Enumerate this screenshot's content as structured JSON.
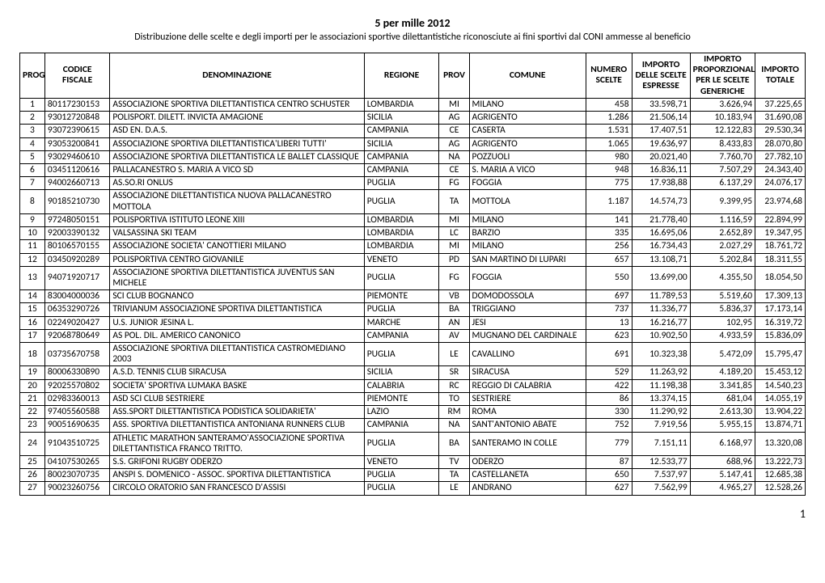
{
  "header": {
    "title": "5 per mille 2012",
    "subtitle": "Distribuzione delle scelte e degli importi per le associazioni sportive dilettantistiche riconosciute ai fini sportivi dal CONI ammesse al beneficio"
  },
  "columns": {
    "prog": "PROG",
    "codice_fiscale": "CODICE FISCALE",
    "denominazione": "DENOMINAZIONE",
    "regione": "REGIONE",
    "prov": "PROV",
    "comune": "COMUNE",
    "numero_scelte": "NUMERO SCELTE",
    "importo_scelte": "IMPORTO DELLE SCELTE ESPRESSE",
    "importo_proporzionale": "IMPORTO PROPORZIONALE PER LE SCELTE GENERICHE",
    "importo_totale": "IMPORTO TOTALE"
  },
  "rows": [
    {
      "prog": "1",
      "cf": "80117230153",
      "den": "ASSOCIAZIONE SPORTIVA DILETTANTISTICA CENTRO SCHUSTER",
      "reg": "LOMBARDIA",
      "prov": "MI",
      "com": "MILANO",
      "num": "458",
      "imp1": "33.598,71",
      "imp2": "3.626,94",
      "imp3": "37.225,65"
    },
    {
      "prog": "2",
      "cf": "93012720848",
      "den": "POLISPORT. DILETT. INVICTA AMAGIONE",
      "reg": "SICILIA",
      "prov": "AG",
      "com": "AGRIGENTO",
      "num": "1.286",
      "imp1": "21.506,14",
      "imp2": "10.183,94",
      "imp3": "31.690,08"
    },
    {
      "prog": "3",
      "cf": "93072390615",
      "den": "ASD EN. D.A.S.",
      "reg": "CAMPANIA",
      "prov": "CE",
      "com": "CASERTA",
      "num": "1.531",
      "imp1": "17.407,51",
      "imp2": "12.122,83",
      "imp3": "29.530,34"
    },
    {
      "prog": "4",
      "cf": "93053200841",
      "den": "ASSOCIAZIONE SPORTIVA DILETTANTISTICA'LIBERI TUTTI'",
      "reg": "SICILIA",
      "prov": "AG",
      "com": "AGRIGENTO",
      "num": "1.065",
      "imp1": "19.636,97",
      "imp2": "8.433,83",
      "imp3": "28.070,80"
    },
    {
      "prog": "5",
      "cf": "93029460610",
      "den": "ASSOCIAZIONE SPORTIVA DILETTANTISTICA LE BALLET CLASSIQUE",
      "reg": "CAMPANIA",
      "prov": "NA",
      "com": "POZZUOLI",
      "num": "980",
      "imp1": "20.021,40",
      "imp2": "7.760,70",
      "imp3": "27.782,10"
    },
    {
      "prog": "6",
      "cf": "03451120616",
      "den": "PALLACANESTRO S. MARIA A VICO SD",
      "reg": "CAMPANIA",
      "prov": "CE",
      "com": "S. MARIA A VICO",
      "num": "948",
      "imp1": "16.836,11",
      "imp2": "7.507,29",
      "imp3": "24.343,40"
    },
    {
      "prog": "7",
      "cf": "94002660713",
      "den": "AS.SO.RI ONLUS",
      "reg": "PUGLIA",
      "prov": "FG",
      "com": "FOGGIA",
      "num": "775",
      "imp1": "17.938,88",
      "imp2": "6.137,29",
      "imp3": "24.076,17"
    },
    {
      "prog": "8",
      "cf": "90185210730",
      "den": "ASSOCIAZIONE DILETTANTISTICA NUOVA PALLACANESTRO MOTTOLA",
      "reg": "PUGLIA",
      "prov": "TA",
      "com": "MOTTOLA",
      "num": "1.187",
      "imp1": "14.574,73",
      "imp2": "9.399,95",
      "imp3": "23.974,68"
    },
    {
      "prog": "9",
      "cf": "97248050151",
      "den": "POLISPORTIVA ISTITUTO LEONE XIII",
      "reg": "LOMBARDIA",
      "prov": "MI",
      "com": "MILANO",
      "num": "141",
      "imp1": "21.778,40",
      "imp2": "1.116,59",
      "imp3": "22.894,99"
    },
    {
      "prog": "10",
      "cf": "92003390132",
      "den": "VALSASSINA SKI TEAM",
      "reg": "LOMBARDIA",
      "prov": "LC",
      "com": "BARZIO",
      "num": "335",
      "imp1": "16.695,06",
      "imp2": "2.652,89",
      "imp3": "19.347,95"
    },
    {
      "prog": "11",
      "cf": "80106570155",
      "den": "ASSOCIAZIONE SOCIETA' CANOTTIERI MILANO",
      "reg": "LOMBARDIA",
      "prov": "MI",
      "com": "MILANO",
      "num": "256",
      "imp1": "16.734,43",
      "imp2": "2.027,29",
      "imp3": "18.761,72"
    },
    {
      "prog": "12",
      "cf": "03450920289",
      "den": "POLISPORTIVA CENTRO GIOVANILE",
      "reg": "VENETO",
      "prov": "PD",
      "com": "SAN MARTINO DI LUPARI",
      "num": "657",
      "imp1": "13.108,71",
      "imp2": "5.202,84",
      "imp3": "18.311,55"
    },
    {
      "prog": "13",
      "cf": "94071920717",
      "den": "ASSOCIAZIONE SPORTIVA DILETTANTISTICA JUVENTUS SAN MICHELE",
      "reg": "PUGLIA",
      "prov": "FG",
      "com": "FOGGIA",
      "num": "550",
      "imp1": "13.699,00",
      "imp2": "4.355,50",
      "imp3": "18.054,50"
    },
    {
      "prog": "14",
      "cf": "83004000036",
      "den": "SCI CLUB BOGNANCO",
      "reg": "PIEMONTE",
      "prov": "VB",
      "com": "DOMODOSSOLA",
      "num": "697",
      "imp1": "11.789,53",
      "imp2": "5.519,60",
      "imp3": "17.309,13"
    },
    {
      "prog": "15",
      "cf": "06353290726",
      "den": "TRIVIANUM ASSOCIAZIONE SPORTIVA DILETTANTISTICA",
      "reg": "PUGLIA",
      "prov": "BA",
      "com": "TRIGGIANO",
      "num": "737",
      "imp1": "11.336,77",
      "imp2": "5.836,37",
      "imp3": "17.173,14"
    },
    {
      "prog": "16",
      "cf": "02249020427",
      "den": "U.S. JUNIOR JESINA L.",
      "reg": "MARCHE",
      "prov": "AN",
      "com": "JESI",
      "num": "13",
      "imp1": "16.216,77",
      "imp2": "102,95",
      "imp3": "16.319,72"
    },
    {
      "prog": "17",
      "cf": "92068780649",
      "den": "AS POL. DIL. AMERICO CANONICO",
      "reg": "CAMPANIA",
      "prov": "AV",
      "com": "MUGNANO DEL CARDINALE",
      "num": "623",
      "imp1": "10.902,50",
      "imp2": "4.933,59",
      "imp3": "15.836,09"
    },
    {
      "prog": "18",
      "cf": "03735670758",
      "den": "ASSOCIAZIONE SPORTIVA DILETTANTISTICA CASTROMEDIANO 2003",
      "reg": "PUGLIA",
      "prov": "LE",
      "com": "CAVALLINO",
      "num": "691",
      "imp1": "10.323,38",
      "imp2": "5.472,09",
      "imp3": "15.795,47"
    },
    {
      "prog": "19",
      "cf": "80006330890",
      "den": "A.S.D. TENNIS CLUB SIRACUSA",
      "reg": "SICILIA",
      "prov": "SR",
      "com": "SIRACUSA",
      "num": "529",
      "imp1": "11.263,92",
      "imp2": "4.189,20",
      "imp3": "15.453,12"
    },
    {
      "prog": "20",
      "cf": "92025570802",
      "den": "SOCIETA' SPORTIVA LUMAKA BASKE",
      "reg": "CALABRIA",
      "prov": "RC",
      "com": "REGGIO DI CALABRIA",
      "num": "422",
      "imp1": "11.198,38",
      "imp2": "3.341,85",
      "imp3": "14.540,23"
    },
    {
      "prog": "21",
      "cf": "02983360013",
      "den": "ASD SCI CLUB SESTRIERE",
      "reg": "PIEMONTE",
      "prov": "TO",
      "com": "SESTRIERE",
      "num": "86",
      "imp1": "13.374,15",
      "imp2": "681,04",
      "imp3": "14.055,19"
    },
    {
      "prog": "22",
      "cf": "97405560588",
      "den": "ASS.SPORT DILETTANTISTICA PODISTICA SOLIDARIETA'",
      "reg": "LAZIO",
      "prov": "RM",
      "com": "ROMA",
      "num": "330",
      "imp1": "11.290,92",
      "imp2": "2.613,30",
      "imp3": "13.904,22"
    },
    {
      "prog": "23",
      "cf": "90051690635",
      "den": "ASS. SPORTIVA DILETTANTISTICA ANTONIANA RUNNERS CLUB",
      "reg": "CAMPANIA",
      "prov": "NA",
      "com": "SANT'ANTONIO ABATE",
      "num": "752",
      "imp1": "7.919,56",
      "imp2": "5.955,15",
      "imp3": "13.874,71"
    },
    {
      "prog": "24",
      "cf": "91043510725",
      "den": "ATHLETIC MARATHON SANTERAMO'ASSOCIAZIONE SPORTIVA DILETTANTISTICA FRANCO TRITTO.",
      "reg": "PUGLIA",
      "prov": "BA",
      "com": "SANTERAMO IN COLLE",
      "num": "779",
      "imp1": "7.151,11",
      "imp2": "6.168,97",
      "imp3": "13.320,08"
    },
    {
      "prog": "25",
      "cf": "04107530265",
      "den": "S.S. GRIFONI RUGBY ODERZO",
      "reg": "VENETO",
      "prov": "TV",
      "com": "ODERZO",
      "num": "87",
      "imp1": "12.533,77",
      "imp2": "688,96",
      "imp3": "13.222,73"
    },
    {
      "prog": "26",
      "cf": "80023070735",
      "den": "ANSPI S. DOMENICO - ASSOC. SPORTIVA DILETTANTISTICA",
      "reg": "PUGLIA",
      "prov": "TA",
      "com": "CASTELLANETA",
      "num": "650",
      "imp1": "7.537,97",
      "imp2": "5.147,41",
      "imp3": "12.685,38"
    },
    {
      "prog": "27",
      "cf": "90023260756",
      "den": "CIRCOLO ORATORIO SAN FRANCESCO D'ASSISI",
      "reg": "PUGLIA",
      "prov": "LE",
      "com": "ANDRANO",
      "num": "627",
      "imp1": "7.562,99",
      "imp2": "4.965,27",
      "imp3": "12.528,26"
    }
  ],
  "footer": {
    "page": "1"
  }
}
